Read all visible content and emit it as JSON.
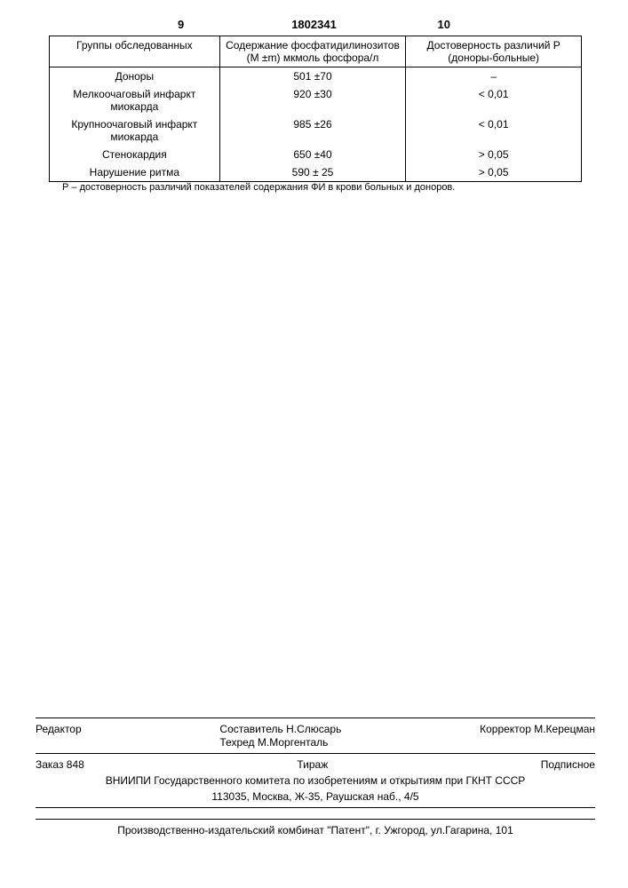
{
  "page": {
    "left_number": "9",
    "center_number": "1802341",
    "right_number": "10"
  },
  "table": {
    "headers": {
      "col1": "Группы обследованных",
      "col2": "Содержание фосфатидилинозитов (M ±m) мкмоль фосфора/л",
      "col3": "Достоверность различий Р (доноры-больные)"
    },
    "rows": [
      {
        "group": "Доноры",
        "value": "501 ±70",
        "p": "–"
      },
      {
        "group": "Мелкоочаговый инфаркт миокарда",
        "value": "920 ±30",
        "p": "< 0,01"
      },
      {
        "group": "Крупноочаговый инфаркт миокарда",
        "value": "985 ±26",
        "p": "< 0,01"
      },
      {
        "group": "Стенокардия",
        "value": "650 ±40",
        "p": "> 0,05"
      },
      {
        "group": "Нарушение ритма",
        "value": "590 ± 25",
        "p": "> 0,05"
      }
    ]
  },
  "footnote": "Р – достоверность различий показателей содержания ФИ в крови больных и доноров.",
  "footer": {
    "editor_label": "Редактор",
    "compositor": "Составитель Н.Слюсарь",
    "techred": "Техред М.Моргенталь",
    "corrector": "Корректор М.Керецман",
    "order": "Заказ 848",
    "tirazh": "Тираж",
    "subscription": "Подписное",
    "org1": "ВНИИПИ Государственного комитета по изобретениям и открытиям при ГКНТ СССР",
    "addr1": "113035, Москва, Ж-35, Раушская наб., 4/5",
    "publisher": "Производственно-издательский комбинат \"Патент\", г. Ужгород, ул.Гагарина, 101"
  }
}
